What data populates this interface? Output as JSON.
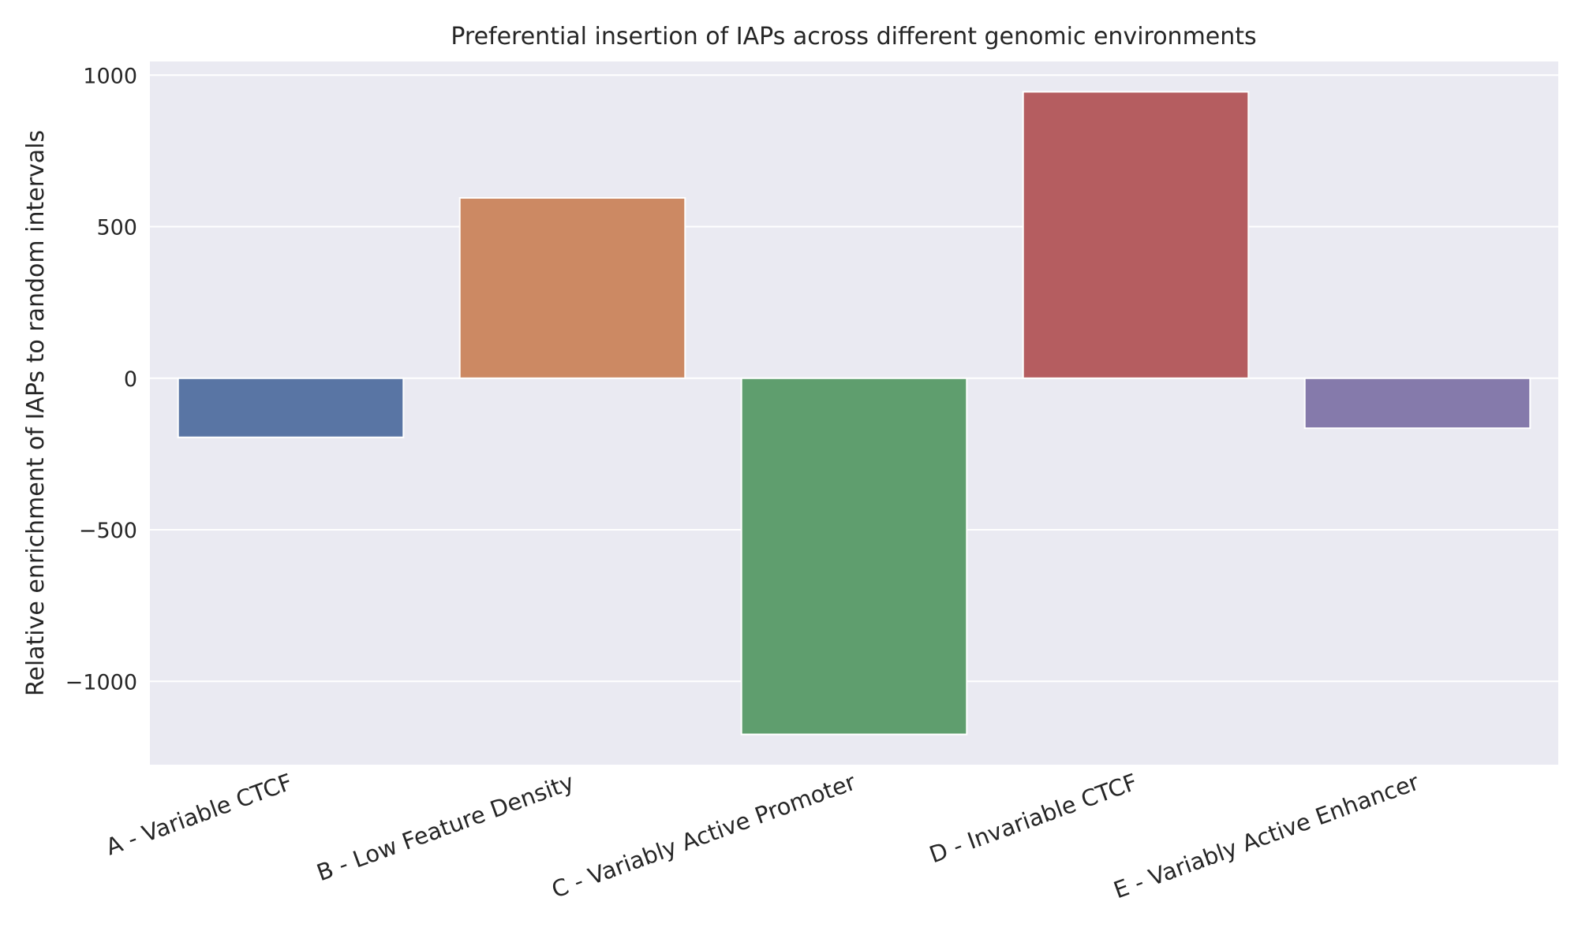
{
  "chart_data": {
    "type": "bar",
    "title": "Preferential insertion of IAPs across different genomic environments",
    "xlabel": "",
    "ylabel": "Relative enrichment of IAPs to random intervals",
    "categories": [
      "A - Variable CTCF",
      "B - Low Feature Density",
      "C - Variably Active Promoter",
      "D - Invariable CTCF",
      "E - Variably Active Enhancer"
    ],
    "values": [
      -195,
      595,
      -1175,
      945,
      -165
    ],
    "colors": [
      "#5975a4",
      "#cc8963",
      "#5f9e6e",
      "#b55d60",
      "#857aab"
    ],
    "ylim": [
      -1275,
      1045
    ],
    "yticks": [
      1000,
      500,
      0,
      -500,
      -1000
    ],
    "ytick_labels": [
      "1000",
      "500",
      "0",
      "−500",
      "−1000"
    ],
    "grid": true,
    "background": "#eaeaf2"
  }
}
